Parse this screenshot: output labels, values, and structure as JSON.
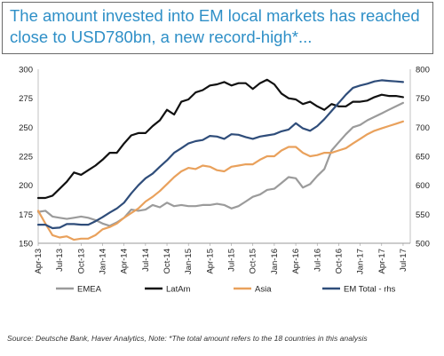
{
  "title": "The amount invested into EM local markets has reached close to USD780bn, a new record-high*...",
  "source": "Source: Deutsche Bank, Haver Analytics, Note: *The total amount refers to the 18 countries in this analysis",
  "chart_data": {
    "type": "line",
    "left_axis": {
      "ylim": [
        150,
        300
      ],
      "ticks": [
        150,
        175,
        200,
        225,
        250,
        275,
        300
      ]
    },
    "right_axis": {
      "ylim": [
        500,
        800
      ],
      "ticks": [
        500,
        550,
        600,
        650,
        700,
        750,
        800
      ]
    },
    "x_ticks": [
      "Apr-13",
      "Jul-13",
      "Oct-13",
      "Jan-14",
      "Apr-14",
      "Jul-14",
      "Oct-14",
      "Jan-15",
      "Apr-15",
      "Jul-15",
      "Oct-15",
      "Jan-16",
      "Apr-16",
      "Jul-16",
      "Oct-16",
      "Jan-17",
      "Apr-17",
      "Jul-17"
    ],
    "x_range": [
      0,
      52
    ],
    "grid": false,
    "legend_position": "bottom",
    "series": [
      {
        "name": "EMEA",
        "axis": "left",
        "color": "#9b9b9b",
        "x": [
          0,
          1,
          2,
          3,
          4,
          5,
          6,
          7,
          8,
          9,
          10,
          11,
          12,
          13,
          14,
          15,
          16,
          17,
          18,
          19,
          20,
          21,
          22,
          23,
          24,
          25,
          26,
          27,
          28,
          29,
          30,
          31,
          32,
          33,
          34,
          35,
          36,
          37,
          38,
          39,
          40,
          41,
          42,
          43,
          44,
          45,
          46,
          47,
          48,
          49,
          50,
          51
        ],
        "values": [
          177,
          178,
          173,
          172,
          171,
          172,
          173,
          172,
          170,
          167,
          165,
          168,
          172,
          179,
          178,
          179,
          183,
          181,
          185,
          182,
          183,
          182,
          182,
          183,
          183,
          184,
          183,
          180,
          182,
          186,
          190,
          192,
          196,
          197,
          202,
          207,
          206,
          198,
          201,
          208,
          214,
          230,
          237,
          244,
          250,
          252,
          256,
          259,
          262,
          265,
          268,
          271
        ]
      },
      {
        "name": "LatAm",
        "axis": "left",
        "color": "#111111",
        "x": [
          0,
          1,
          2,
          3,
          4,
          5,
          6,
          7,
          8,
          9,
          10,
          11,
          12,
          13,
          14,
          15,
          16,
          17,
          18,
          19,
          20,
          21,
          22,
          23,
          24,
          25,
          26,
          27,
          28,
          29,
          30,
          31,
          32,
          33,
          34,
          35,
          36,
          37,
          38,
          39,
          40,
          41,
          42,
          43,
          44,
          45,
          46,
          47,
          48,
          49,
          50,
          51
        ],
        "values": [
          189,
          189,
          191,
          197,
          203,
          211,
          209,
          213,
          217,
          222,
          228,
          228,
          236,
          243,
          245,
          245,
          251,
          256,
          265,
          261,
          272,
          274,
          280,
          282,
          286,
          287,
          289,
          286,
          288,
          288,
          283,
          288,
          291,
          287,
          279,
          275,
          274,
          270,
          272,
          268,
          265,
          270,
          268,
          268,
          272,
          272,
          273,
          276,
          278,
          277,
          277,
          276
        ]
      },
      {
        "name": "Asia",
        "axis": "left",
        "color": "#e9a15c",
        "x": [
          0,
          1,
          2,
          3,
          4,
          5,
          6,
          7,
          8,
          9,
          10,
          11,
          12,
          13,
          14,
          15,
          16,
          17,
          18,
          19,
          20,
          21,
          22,
          23,
          24,
          25,
          26,
          27,
          28,
          29,
          30,
          31,
          32,
          33,
          34,
          35,
          36,
          37,
          38,
          39,
          40,
          41,
          42,
          43,
          44,
          45,
          46,
          47,
          48,
          49,
          50,
          51
        ],
        "values": [
          178,
          167,
          157,
          155,
          156,
          153,
          154,
          154,
          157,
          162,
          164,
          167,
          172,
          176,
          180,
          186,
          190,
          195,
          201,
          207,
          212,
          215,
          214,
          217,
          216,
          213,
          212,
          216,
          217,
          218,
          218,
          222,
          225,
          225,
          230,
          233,
          233,
          228,
          225,
          226,
          228,
          228,
          230,
          232,
          236,
          240,
          244,
          247,
          249,
          251,
          253,
          255
        ]
      },
      {
        "name": "EM Total - rhs",
        "axis": "right",
        "color": "#2f4d7a",
        "x": [
          0,
          1,
          2,
          3,
          4,
          5,
          6,
          7,
          8,
          9,
          10,
          11,
          12,
          13,
          14,
          15,
          16,
          17,
          18,
          19,
          20,
          21,
          22,
          23,
          24,
          25,
          26,
          27,
          28,
          29,
          30,
          31,
          32,
          33,
          34,
          35,
          36,
          37,
          38,
          39,
          40,
          41,
          42,
          43,
          44,
          45,
          46,
          47,
          48,
          49,
          50,
          51
        ],
        "values": [
          532,
          532,
          526,
          527,
          533,
          533,
          532,
          532,
          538,
          545,
          553,
          560,
          570,
          586,
          600,
          612,
          620,
          632,
          643,
          656,
          664,
          672,
          676,
          678,
          685,
          684,
          680,
          688,
          687,
          683,
          680,
          684,
          686,
          688,
          693,
          696,
          707,
          698,
          694,
          702,
          714,
          728,
          742,
          756,
          768,
          772,
          775,
          779,
          781,
          780,
          779,
          778
        ]
      }
    ]
  }
}
